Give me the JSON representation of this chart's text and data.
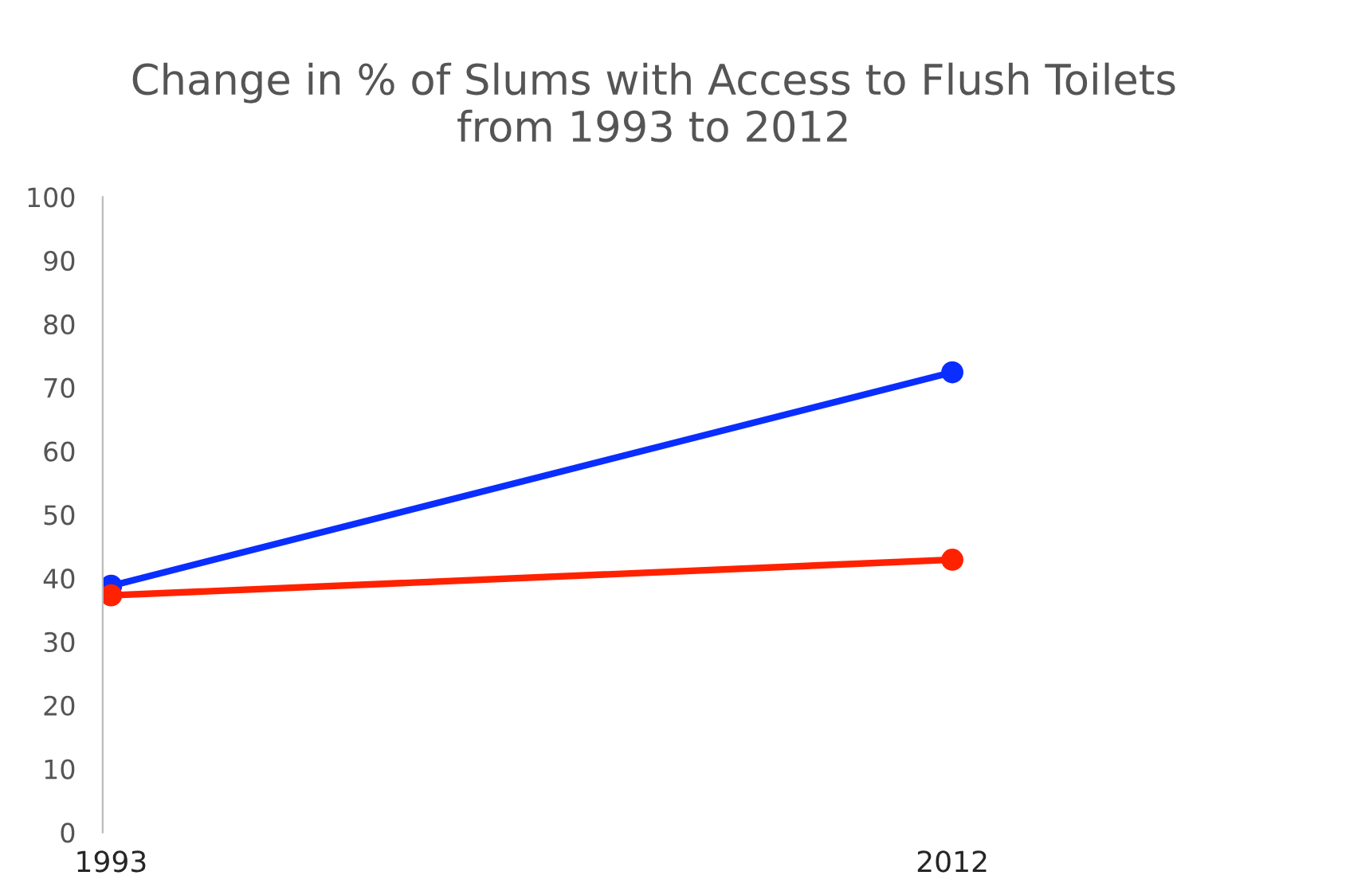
{
  "chart_data": {
    "type": "line",
    "title": "Change in % of Slums with Access to Flush Toilets\nfrom 1993 to 2012",
    "categories": [
      "1993",
      "2012"
    ],
    "series": [
      {
        "color": "#0a2eff",
        "values": [
          38.8,
          72.4
        ]
      },
      {
        "color": "#ff2200",
        "values": [
          37.3,
          42.9
        ]
      }
    ],
    "ylim": [
      0,
      100
    ],
    "yticks": [
      0,
      10,
      20,
      30,
      40,
      50,
      60,
      70,
      80,
      90,
      100
    ],
    "marker": "circle",
    "grid": false
  }
}
